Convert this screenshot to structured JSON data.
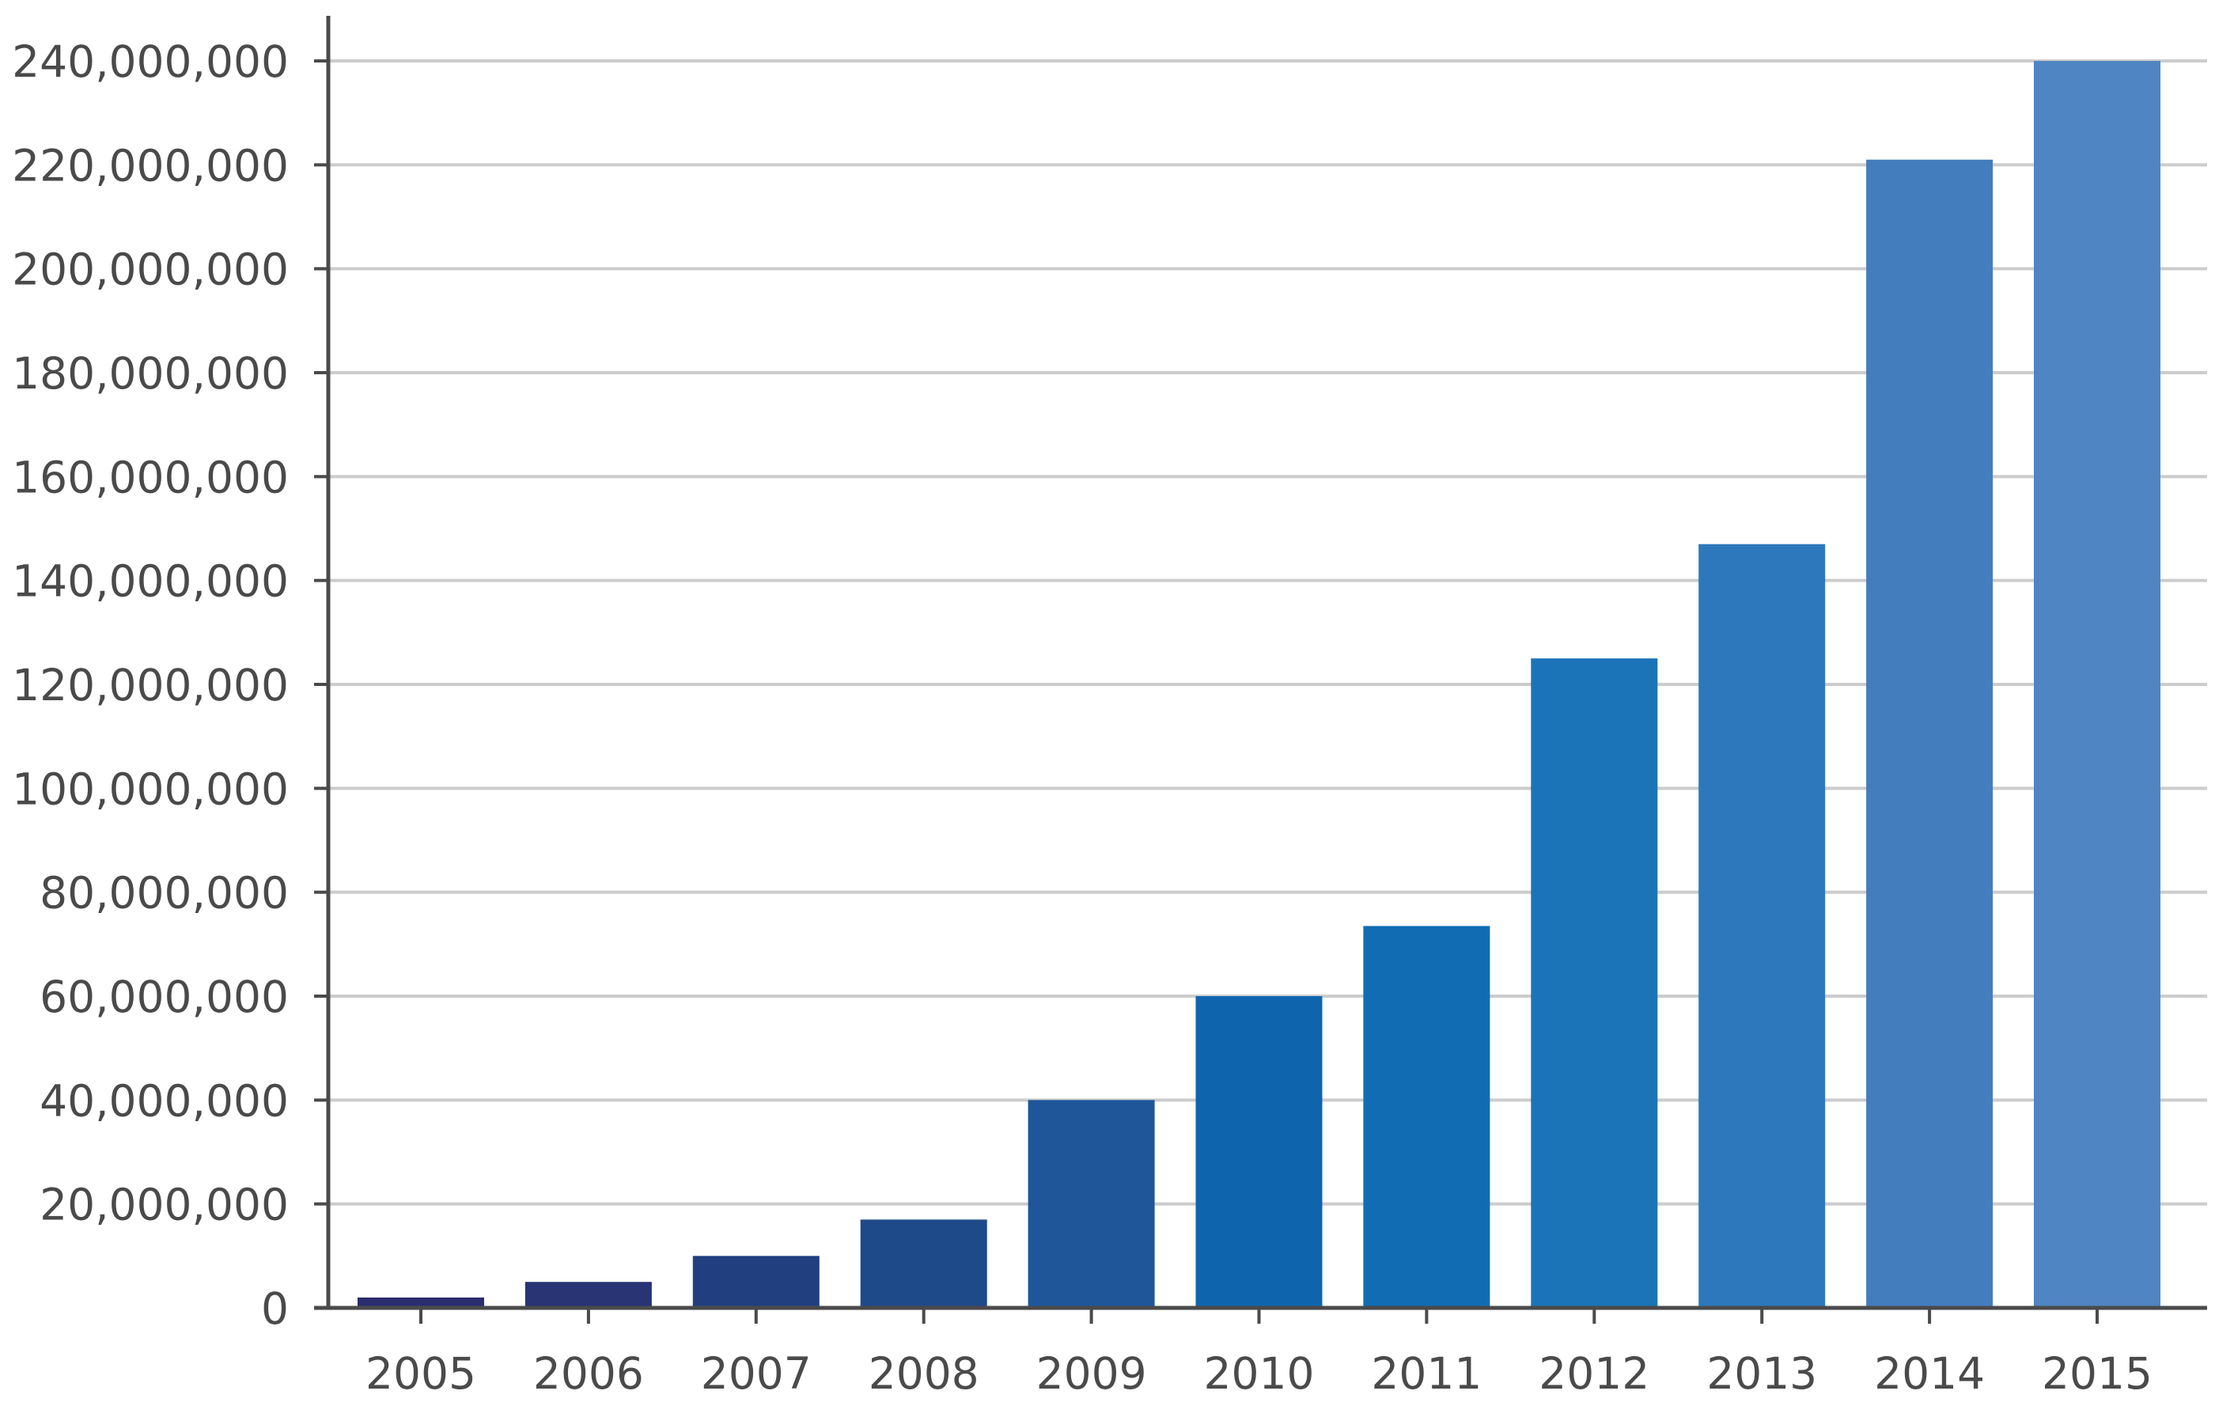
{
  "chart_data": {
    "type": "bar",
    "categories": [
      "2005",
      "2006",
      "2007",
      "2008",
      "2009",
      "2010",
      "2011",
      "2012",
      "2013",
      "2014",
      "2015"
    ],
    "values": [
      2000000,
      5000000,
      10000000,
      17000000,
      40000000,
      60000000,
      73500000,
      125000000,
      147000000,
      221000000,
      240000000
    ],
    "ylim": [
      0,
      240000000
    ],
    "yticks": [
      0,
      20000000,
      40000000,
      60000000,
      80000000,
      100000000,
      120000000,
      140000000,
      160000000,
      180000000,
      200000000,
      220000000,
      240000000
    ],
    "ytick_labels": [
      "0",
      "20,000,000",
      "40,000,000",
      "60,000,000",
      "80,000,000",
      "100,000,000",
      "120,000,000",
      "140,000,000",
      "160,000,000",
      "180,000,000",
      "200,000,000",
      "220,000,000",
      "240,000,000"
    ],
    "grid": true,
    "legend": "none",
    "colors": {
      "bars": [
        "#2a2d6e",
        "#283474",
        "#213f7e",
        "#1e4a8a",
        "#1e5699",
        "#0f65ad",
        "#116cb3",
        "#1b74b8",
        "#2d78bc",
        "#437dbe",
        "#4f85c2"
      ],
      "grid": "#cccccc",
      "axis": "#4a4a4a",
      "text": "#4a4a4a"
    }
  }
}
